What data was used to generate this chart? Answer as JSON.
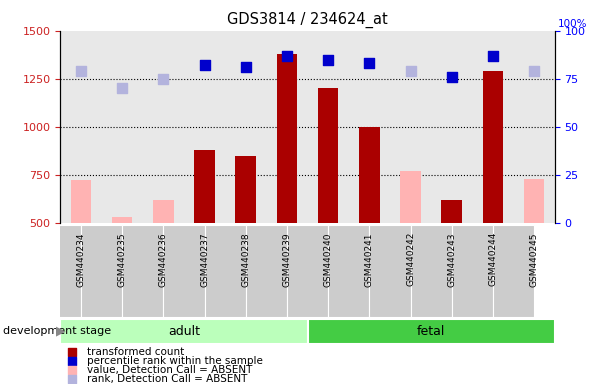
{
  "title": "GDS3814 / 234624_at",
  "samples": [
    "GSM440234",
    "GSM440235",
    "GSM440236",
    "GSM440237",
    "GSM440238",
    "GSM440239",
    "GSM440240",
    "GSM440241",
    "GSM440242",
    "GSM440243",
    "GSM440244",
    "GSM440245"
  ],
  "transformed_count": [
    null,
    null,
    null,
    880,
    850,
    1380,
    1200,
    1000,
    null,
    620,
    1290,
    null
  ],
  "absent_value": [
    720,
    530,
    620,
    null,
    null,
    null,
    null,
    null,
    770,
    null,
    null,
    730
  ],
  "percentile_rank": [
    null,
    null,
    null,
    82,
    81,
    87,
    85,
    83,
    null,
    76,
    87,
    null
  ],
  "absent_rank": [
    79,
    70,
    75,
    null,
    null,
    null,
    null,
    null,
    79,
    null,
    null,
    79
  ],
  "ylim_left": [
    500,
    1500
  ],
  "ylim_right": [
    0,
    100
  ],
  "yticks_left": [
    500,
    750,
    1000,
    1250,
    1500
  ],
  "yticks_right": [
    0,
    25,
    50,
    75,
    100
  ],
  "bar_color_present": "#aa0000",
  "bar_color_absent": "#ffb3b3",
  "dot_color_present": "#0000cc",
  "dot_color_absent": "#b3b3dd",
  "adult_color": "#bbffbb",
  "fetal_color": "#44cc44",
  "background_color": "#ffffff",
  "bar_width": 0.5,
  "dot_size": 45,
  "legend_items": [
    {
      "label": "transformed count",
      "color": "#aa0000"
    },
    {
      "label": "percentile rank within the sample",
      "color": "#0000cc"
    },
    {
      "label": "value, Detection Call = ABSENT",
      "color": "#ffb3b3"
    },
    {
      "label": "rank, Detection Call = ABSENT",
      "color": "#b3b3dd"
    }
  ]
}
